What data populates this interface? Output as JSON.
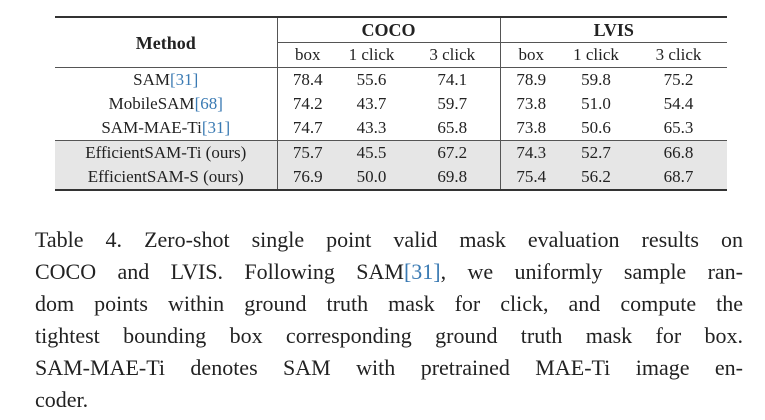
{
  "table": {
    "method_header": "Method",
    "groups": [
      "COCO",
      "LVIS"
    ],
    "subheaders": [
      "box",
      "1 click",
      "3 click",
      "box",
      "1 click",
      "3 click"
    ],
    "rows": [
      {
        "name": "SAM",
        "cite": "[31]",
        "values": [
          "78.4",
          "55.6",
          "74.1",
          "78.9",
          "59.8",
          "75.2"
        ]
      },
      {
        "name": "MobileSAM",
        "cite": "[68]",
        "values": [
          "74.2",
          "43.7",
          "59.7",
          "73.8",
          "51.0",
          "54.4"
        ]
      },
      {
        "name": "SAM-MAE-Ti",
        "cite": "[31]",
        "values": [
          "74.7",
          "43.3",
          "65.8",
          "73.8",
          "50.6",
          "65.3"
        ]
      },
      {
        "name": "EfficientSAM-Ti (ours)",
        "cite": null,
        "values": [
          "75.7",
          "45.5",
          "67.2",
          "74.3",
          "52.7",
          "66.8"
        ]
      },
      {
        "name": "EfficientSAM-S (ours)",
        "cite": null,
        "values": [
          "76.9",
          "50.0",
          "69.8",
          "75.4",
          "56.2",
          "68.7"
        ]
      }
    ]
  },
  "caption": {
    "lines": [
      [
        "Table 4. Zero-shot single point valid mask evaluation results on"
      ],
      [
        "COCO and LVIS. Following SAM",
        "[31]",
        ", we uniformly sample ran-"
      ],
      [
        "dom points within ground truth mask for click, and compute the"
      ],
      [
        "tightest bounding box corresponding ground truth mask for box."
      ],
      [
        "SAM-MAE-Ti denotes SAM with pretrained MAE-Ti image en-"
      ],
      [
        "coder."
      ]
    ]
  }
}
